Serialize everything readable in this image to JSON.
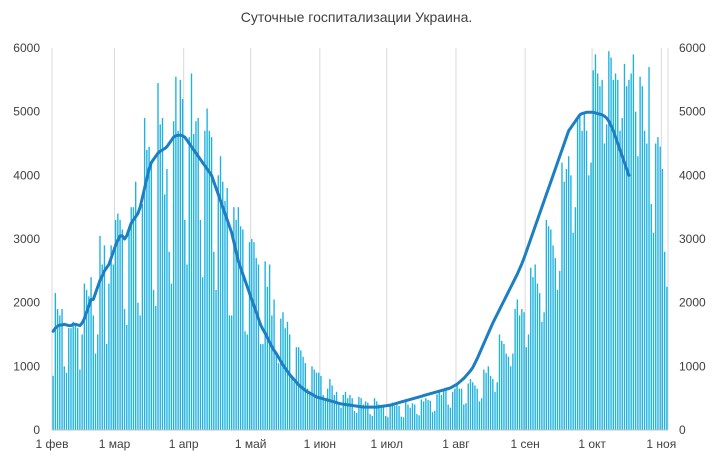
{
  "chart_data": {
    "type": "bar",
    "title": "Суточные госпитализации Украина.",
    "xlabel": "",
    "ylabel": "",
    "ylim": [
      0,
      6000
    ],
    "y_ticks": [
      0,
      1000,
      2000,
      3000,
      4000,
      5000,
      6000
    ],
    "y_axis_both_sides": true,
    "x_ticks": [
      "1 фев",
      "1 мар",
      "1 апр",
      "1 май",
      "1 июн",
      "1 июл",
      "1 авг",
      "1 сен",
      "1 окт",
      "1 ноя"
    ],
    "x_tick_day_index": [
      0,
      28,
      59,
      89,
      120,
      150,
      181,
      212,
      242,
      273
    ],
    "grid": "vertical",
    "legend": "none",
    "bar_color": "#1fb2e0",
    "line_color": "#1c7fc2",
    "series": [
      {
        "type": "bar",
        "values": [
          850,
          2150,
          1900,
          1800,
          1900,
          1000,
          900,
          1600,
          1600,
          1700,
          1650,
          1600,
          950,
          1500,
          2300,
          2200,
          2100,
          2400,
          1800,
          1200,
          1500,
          3050,
          2600,
          2900,
          1350,
          2300,
          2900,
          2600,
          3300,
          3400,
          3300,
          3150,
          1900,
          1650,
          3200,
          3500,
          3500,
          3900,
          2000,
          1800,
          3550,
          4900,
          4400,
          4450,
          4200,
          2200,
          1950,
          5450,
          4800,
          4900,
          3700,
          4100,
          2800,
          2300,
          4850,
          5550,
          4700,
          5500,
          5200,
          3300,
          2600,
          4600,
          5600,
          4650,
          4850,
          4900,
          3300,
          2400,
          4700,
          5050,
          4700,
          4600,
          2800,
          2200,
          4000,
          4300,
          3900,
          3600,
          3800,
          1800,
          1800,
          3500,
          3300,
          3500,
          3200,
          3150,
          1550,
          1500,
          2950,
          3000,
          2950,
          2700,
          2600,
          1350,
          1350,
          2650,
          2250,
          2600,
          1800,
          2050,
          1200,
          1050,
          1750,
          1850,
          1600,
          1700,
          1500,
          850,
          750,
          1300,
          1300,
          1250,
          1150,
          1050,
          650,
          600,
          1000,
          950,
          900,
          900,
          850,
          550,
          500,
          650,
          800,
          700,
          550,
          600,
          400,
          350,
          550,
          600,
          500,
          550,
          500,
          300,
          270,
          520,
          500,
          400,
          450,
          430,
          250,
          220,
          500,
          450,
          400,
          350,
          380,
          220,
          200,
          400,
          430,
          380,
          390,
          380,
          210,
          200,
          440,
          400,
          350,
          420,
          400,
          250,
          230,
          480,
          450,
          500,
          470,
          460,
          280,
          300,
          560,
          600,
          550,
          620,
          650,
          400,
          350,
          600,
          650,
          700,
          650,
          650,
          400,
          420,
          730,
          800,
          750,
          700,
          650,
          450,
          500,
          950,
          900,
          1000,
          850,
          800,
          600,
          750,
          1500,
          1400,
          1350,
          1200,
          1150,
          1000,
          1200,
          1900,
          2050,
          1800,
          1900,
          1850,
          1300,
          1500,
          2550,
          2400,
          2600,
          2300,
          2150,
          1700,
          1850,
          3300,
          3200,
          3150,
          2900,
          2700,
          2200,
          2500,
          4200,
          3900,
          4100,
          4300,
          4000,
          3100,
          3500,
          4900,
          4950,
          4700,
          5000,
          4700,
          4000,
          4200,
          5650,
          5900,
          5600,
          5400,
          5500,
          4500,
          4800,
          5950,
          5850,
          5500,
          5600,
          5500,
          4700,
          4900,
          5750,
          5400,
          5500,
          5600,
          5900,
          5000,
          4300,
          5550,
          5400,
          4700,
          4500,
          5700,
          3550,
          3100,
          4500,
          4600,
          4450,
          4100,
          2800,
          2250
        ]
      },
      {
        "type": "line",
        "values": [
          1550,
          1600,
          1630,
          1650,
          1650,
          1660,
          1650,
          1640,
          1640,
          1660,
          1660,
          1650,
          1640,
          1680,
          1750,
          1850,
          1950,
          2050,
          2050,
          2150,
          2250,
          2350,
          2420,
          2500,
          2550,
          2600,
          2700,
          2800,
          2900,
          2980,
          3050,
          3050,
          3000,
          3050,
          3150,
          3250,
          3300,
          3350,
          3400,
          3500,
          3650,
          3800,
          3950,
          4100,
          4200,
          4250,
          4300,
          4350,
          4380,
          4400,
          4420,
          4450,
          4500,
          4550,
          4600,
          4620,
          4630,
          4630,
          4620,
          4600,
          4550,
          4500,
          4450,
          4400,
          4350,
          4300,
          4250,
          4200,
          4150,
          4100,
          4050,
          4000,
          3900,
          3800,
          3700,
          3600,
          3500,
          3400,
          3300,
          3200,
          3100,
          2950,
          2800,
          2650,
          2550,
          2450,
          2350,
          2250,
          2150,
          2050,
          1950,
          1850,
          1750,
          1650,
          1580,
          1520,
          1450,
          1380,
          1310,
          1250,
          1200,
          1140,
          1080,
          1020,
          970,
          920,
          870,
          830,
          790,
          750,
          710,
          680,
          650,
          620,
          600,
          580,
          560,
          540,
          520,
          510,
          500,
          490,
          480,
          470,
          460,
          450,
          440,
          430,
          420,
          410,
          405,
          400,
          395,
          390,
          385,
          380,
          375,
          370,
          365,
          360,
          360,
          360,
          360,
          360,
          360,
          360,
          365,
          370,
          375,
          380,
          385,
          390,
          400,
          410,
          420,
          430,
          440,
          450,
          460,
          470,
          480,
          490,
          500,
          510,
          520,
          530,
          540,
          550,
          560,
          570,
          580,
          590,
          600,
          610,
          620,
          630,
          640,
          650,
          660,
          680,
          700,
          720,
          750,
          780,
          810,
          850,
          890,
          930,
          980,
          1050,
          1120,
          1200,
          1280,
          1360,
          1440,
          1520,
          1600,
          1680,
          1750,
          1820,
          1890,
          1960,
          2030,
          2100,
          2170,
          2240,
          2310,
          2380,
          2450,
          2530,
          2610,
          2700,
          2800,
          2900,
          3000,
          3100,
          3200,
          3300,
          3400,
          3500,
          3600,
          3700,
          3800,
          3900,
          4000,
          4100,
          4200,
          4300,
          4400,
          4500,
          4600,
          4700,
          4750,
          4800,
          4850,
          4900,
          4950,
          4970,
          4980,
          4990,
          4990,
          4990,
          4990,
          4980,
          4970,
          4960,
          4950,
          4930,
          4900,
          4850,
          4780,
          4700,
          4600,
          4500,
          4400,
          4300,
          4200,
          4100,
          4000
        ]
      }
    ]
  }
}
